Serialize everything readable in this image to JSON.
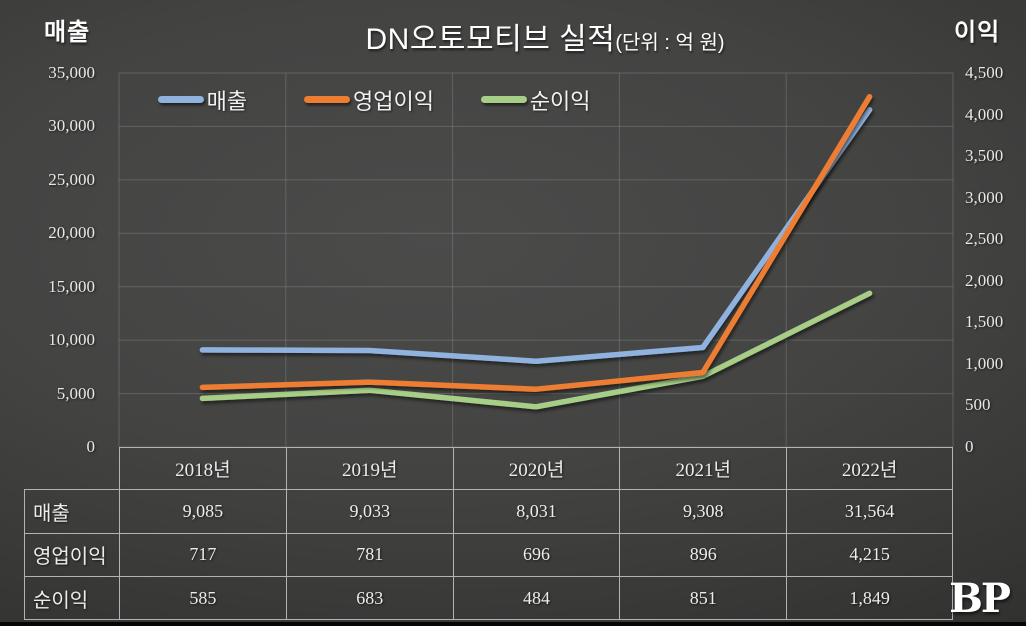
{
  "title": {
    "main": "DN오토모티브 실적",
    "unit": "(단위 : 억 원)"
  },
  "corner_labels": {
    "left": "매출",
    "right": "이익"
  },
  "logo": {
    "text": "BP"
  },
  "colors": {
    "background": "#3f3f3e",
    "gridline": "#8d8d8d",
    "table_border": "#b3b3b3",
    "text": "#ececec",
    "series_revenue": "#8FB2DE",
    "series_operating_profit": "#ED7D31",
    "series_net_profit": "#A6CE87"
  },
  "left_axis": {
    "title": "매출",
    "ticks": [
      "35,000",
      "30,000",
      "25,000",
      "20,000",
      "15,000",
      "10,000",
      "5,000",
      "0"
    ]
  },
  "right_axis": {
    "title": "이익",
    "ticks": [
      "4,500",
      "4,000",
      "3,500",
      "3,000",
      "2,500",
      "2,000",
      "1,500",
      "1,000",
      "500",
      "0"
    ]
  },
  "chart_data": {
    "type": "line",
    "title": "DN오토모티브 실적(단위 : 억 원)",
    "categories": [
      "2018년",
      "2019년",
      "2020년",
      "2021년",
      "2022년"
    ],
    "series": [
      {
        "name": "매출",
        "axis": "left",
        "color": "#8FB2DE",
        "values": [
          9085,
          9033,
          8031,
          9308,
          31564
        ]
      },
      {
        "name": "영업이익",
        "axis": "right",
        "color": "#ED7D31",
        "values": [
          717,
          781,
          696,
          896,
          4215
        ]
      },
      {
        "name": "순이익",
        "axis": "right",
        "color": "#A6CE87",
        "values": [
          585,
          683,
          484,
          851,
          1849
        ]
      }
    ],
    "left_axis_range": [
      0,
      35000
    ],
    "left_axis_step": 5000,
    "right_axis_range": [
      0,
      4500
    ],
    "right_axis_step": 500,
    "grid": true,
    "legend_position": "top-inside"
  },
  "table": {
    "col_headers": [
      "2018년",
      "2019년",
      "2020년",
      "2021년",
      "2022년"
    ],
    "rows": [
      {
        "header": "매출",
        "values": [
          "9,085",
          "9,033",
          "8,031",
          "9,308",
          "31,564"
        ]
      },
      {
        "header": "영업이익",
        "values": [
          "717",
          "781",
          "696",
          "896",
          "4,215"
        ]
      },
      {
        "header": "순이익",
        "values": [
          "585",
          "683",
          "484",
          "851",
          "1,849"
        ]
      }
    ]
  }
}
